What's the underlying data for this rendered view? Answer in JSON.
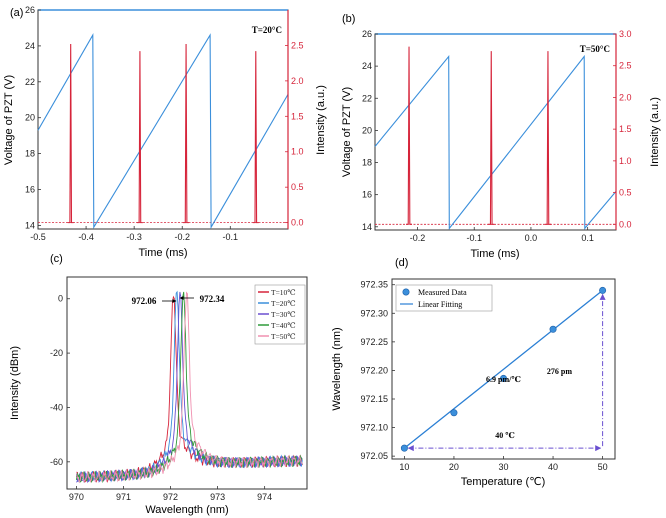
{
  "chart_data": [
    {
      "panel_label": "(a)",
      "type": "line",
      "annotation": "T=20°C",
      "xlabel": "Time (ms)",
      "ylabel_left": "Voltage of PZT (V)",
      "ylabel_right": "Intensity (a.u.)",
      "xlim": [
        -0.5,
        0.02
      ],
      "ylim_left": [
        13.8,
        26
      ],
      "ylim_right": [
        -0.09,
        3.0
      ],
      "x_ticks": [
        "-0.5",
        "-0.4",
        "-0.3",
        "-0.2",
        "-0.1"
      ],
      "x_tick_values": [
        -0.5,
        -0.4,
        -0.3,
        -0.2,
        -0.1
      ],
      "y_left_ticks": [
        "14",
        "16",
        "18",
        "20",
        "22",
        "24",
        "26"
      ],
      "y_left_tick_values": [
        14,
        16,
        18,
        20,
        22,
        24,
        26
      ],
      "y_right_ticks": [
        "0.0",
        "0.5",
        "1.0",
        "1.5",
        "2.0",
        "2.5"
      ],
      "y_right_tick_values": [
        0,
        0.5,
        1.0,
        1.5,
        2.0,
        2.5
      ],
      "colors": {
        "voltage": "#3b8fdb",
        "intensity": "#d6243a",
        "axis_right": "#d6243a"
      },
      "series": [
        {
          "axis": "left",
          "points": [
            [
              -0.5,
              19.3
            ],
            [
              -0.386,
              24.6
            ],
            [
              -0.384,
              13.9
            ],
            [
              -0.142,
              24.6
            ],
            [
              -0.14,
              13.9
            ],
            [
              0.02,
              21.3
            ]
          ]
        },
        {
          "axis": "right",
          "peaks": [
            {
              "x": -0.432,
              "height": 2.52
            },
            {
              "x": -0.288,
              "height": 2.42
            },
            {
              "x": -0.192,
              "height": 2.52
            },
            {
              "x": -0.047,
              "height": 2.42
            }
          ]
        }
      ]
    },
    {
      "panel_label": "(b)",
      "type": "line",
      "annotation": "T=50°C",
      "xlabel": "Time (ms)",
      "ylabel_left": "Voltage of PZT (V)",
      "ylabel_right": "Intensity (a.u.)",
      "xlim": [
        -0.275,
        0.15
      ],
      "ylim_left": [
        13.8,
        26
      ],
      "ylim_right": [
        -0.09,
        3.0
      ],
      "x_ticks": [
        "-0.2",
        "-0.1",
        "0.0",
        "0.1"
      ],
      "x_tick_values": [
        -0.2,
        -0.1,
        0.0,
        0.1
      ],
      "y_left_ticks": [
        "14",
        "16",
        "18",
        "20",
        "22",
        "24",
        "26"
      ],
      "y_left_tick_values": [
        14,
        16,
        18,
        20,
        22,
        24,
        26
      ],
      "y_right_ticks": [
        "0.0",
        "0.5",
        "1.0",
        "1.5",
        "2.0",
        "2.5",
        "3.0"
      ],
      "y_right_tick_values": [
        0,
        0.5,
        1.0,
        1.5,
        2.0,
        2.5,
        3.0
      ],
      "colors": {
        "voltage": "#3b8fdb",
        "intensity": "#d6243a",
        "axis_right": "#d6243a"
      },
      "series": [
        {
          "axis": "left",
          "points": [
            [
              -0.275,
              19.0
            ],
            [
              -0.145,
              24.6
            ],
            [
              -0.144,
              13.9
            ],
            [
              0.094,
              24.6
            ],
            [
              0.095,
              13.9
            ],
            [
              0.15,
              16.2
            ]
          ]
        },
        {
          "axis": "right",
          "peaks": [
            {
              "x": -0.215,
              "height": 2.8
            },
            {
              "x": -0.07,
              "height": 2.73
            },
            {
              "x": 0.03,
              "height": 2.73
            }
          ]
        }
      ]
    },
    {
      "panel_label": "(c)",
      "type": "line",
      "xlabel": "Wavelength (nm)",
      "ylabel": "Intensity (dBm)",
      "xlim": [
        969.8,
        974.9
      ],
      "ylim": [
        -70,
        8
      ],
      "x_ticks": [
        "970",
        "971",
        "972",
        "973",
        "974"
      ],
      "x_tick_values": [
        970,
        971,
        972,
        973,
        974
      ],
      "y_ticks": [
        "-60",
        "-40",
        "-20",
        "0"
      ],
      "y_tick_values": [
        -60,
        -40,
        -20,
        0
      ],
      "annotations": [
        "972.06",
        "972.34"
      ],
      "legend_position": "top-right",
      "series": [
        {
          "name": "T=10℃",
          "color": "#d6243a",
          "peak_wavelength": 972.06
        },
        {
          "name": "T=20℃",
          "color": "#3b8fdb",
          "peak_wavelength": 972.13
        },
        {
          "name": "T=30℃",
          "color": "#6a4fd0",
          "peak_wavelength": 972.2
        },
        {
          "name": "T=40℃",
          "color": "#2f9a3a",
          "peak_wavelength": 972.27
        },
        {
          "name": "T=50℃",
          "color": "#f090b0",
          "peak_wavelength": 972.34
        }
      ]
    },
    {
      "panel_label": "(d)",
      "type": "scatter",
      "xlabel": "Temperature (℃)",
      "ylabel": "Wavelength (nm)",
      "xlim": [
        7.5,
        52.5
      ],
      "ylim": [
        972.045,
        972.36
      ],
      "x_ticks": [
        "10",
        "20",
        "30",
        "40",
        "50"
      ],
      "x_tick_values": [
        10,
        20,
        30,
        40,
        50
      ],
      "y_ticks": [
        "972.05",
        "972.10",
        "972.15",
        "972.20",
        "972.25",
        "972.30",
        "972.35"
      ],
      "y_tick_values": [
        972.05,
        972.1,
        972.15,
        972.2,
        972.25,
        972.3,
        972.35
      ],
      "legend": [
        "Measured Data",
        "Linear Fitting"
      ],
      "legend_position": "top-left",
      "annotations": {
        "slope": "6.9 pm/℃",
        "delta_y": "276 pm",
        "delta_x": "40 ℃"
      },
      "colors": {
        "points": "#3b8fdb",
        "fit": "#2a7fd4",
        "arrows": "#6a4fd0"
      },
      "x": [
        10,
        20,
        30,
        40,
        50
      ],
      "y": [
        972.064,
        972.126,
        972.186,
        972.272,
        972.34
      ],
      "fit": {
        "x": [
          10,
          50
        ],
        "y": [
          972.064,
          972.34
        ]
      }
    }
  ]
}
